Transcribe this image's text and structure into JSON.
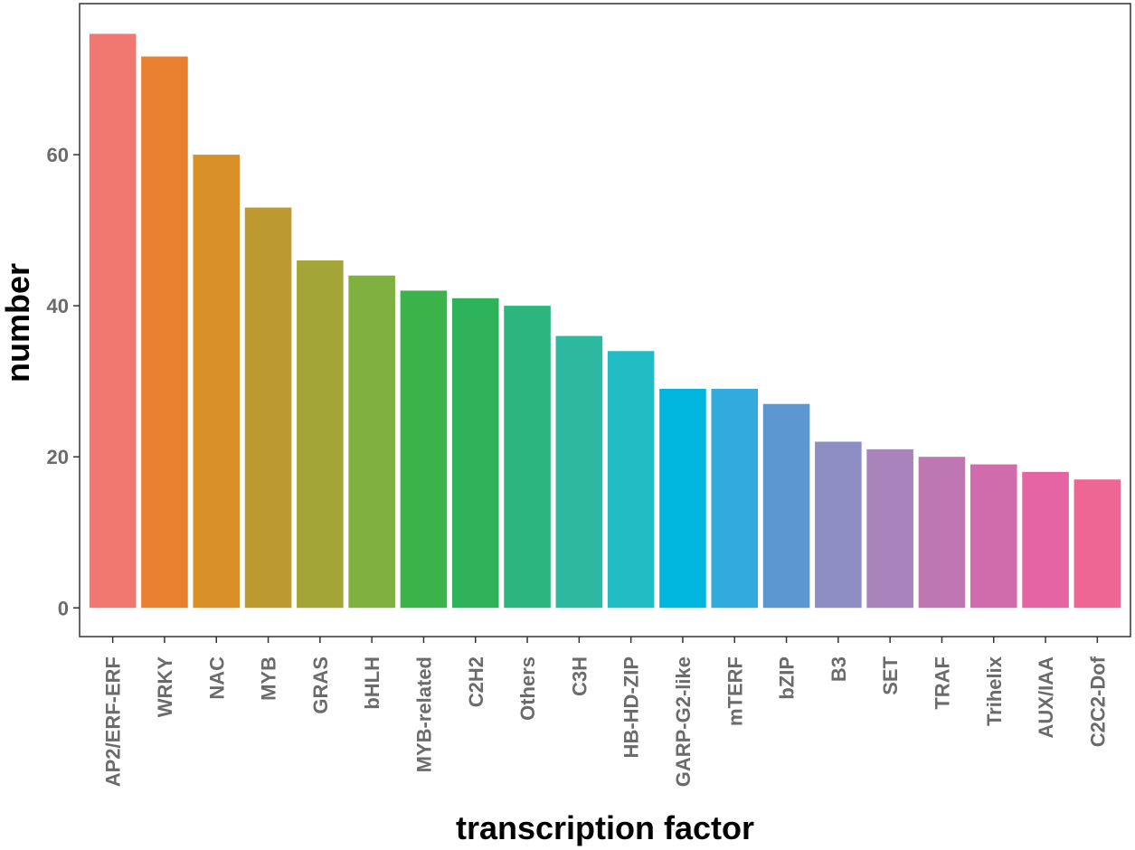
{
  "chart_data": {
    "type": "bar",
    "title": "",
    "xlabel": "transcription factor",
    "ylabel": "number",
    "categories": [
      "AP2/ERF-ERF",
      "WRKY",
      "NAC",
      "MYB",
      "GRAS",
      "bHLH",
      "MYB-related",
      "C2H2",
      "Others",
      "C3H",
      "HB-HD-ZIP",
      "GARP-G2-like",
      "mTERF",
      "bZIP",
      "B3",
      "SET",
      "TRAF",
      "Trihelix",
      "AUX/IAA",
      "C2C2-Dof"
    ],
    "values": [
      76,
      73,
      60,
      53,
      46,
      44,
      42,
      41,
      40,
      36,
      34,
      29,
      29,
      27,
      22,
      21,
      20,
      19,
      18,
      17
    ],
    "colors": [
      "#F07870",
      "#E88030",
      "#D99028",
      "#BC9A30",
      "#A3A636",
      "#7FB040",
      "#3CB34A",
      "#2EB35A",
      "#2DB57E",
      "#2CB9A0",
      "#22BCC4",
      "#00B5DE",
      "#33AADE",
      "#5C97D2",
      "#8E8EC4",
      "#A883BC",
      "#BF77B4",
      "#D06CAC",
      "#E565A4",
      "#EE6694"
    ],
    "yticks": [
      0,
      20,
      40,
      60
    ],
    "ylim": [
      -3.8,
      80
    ],
    "grid": false
  }
}
